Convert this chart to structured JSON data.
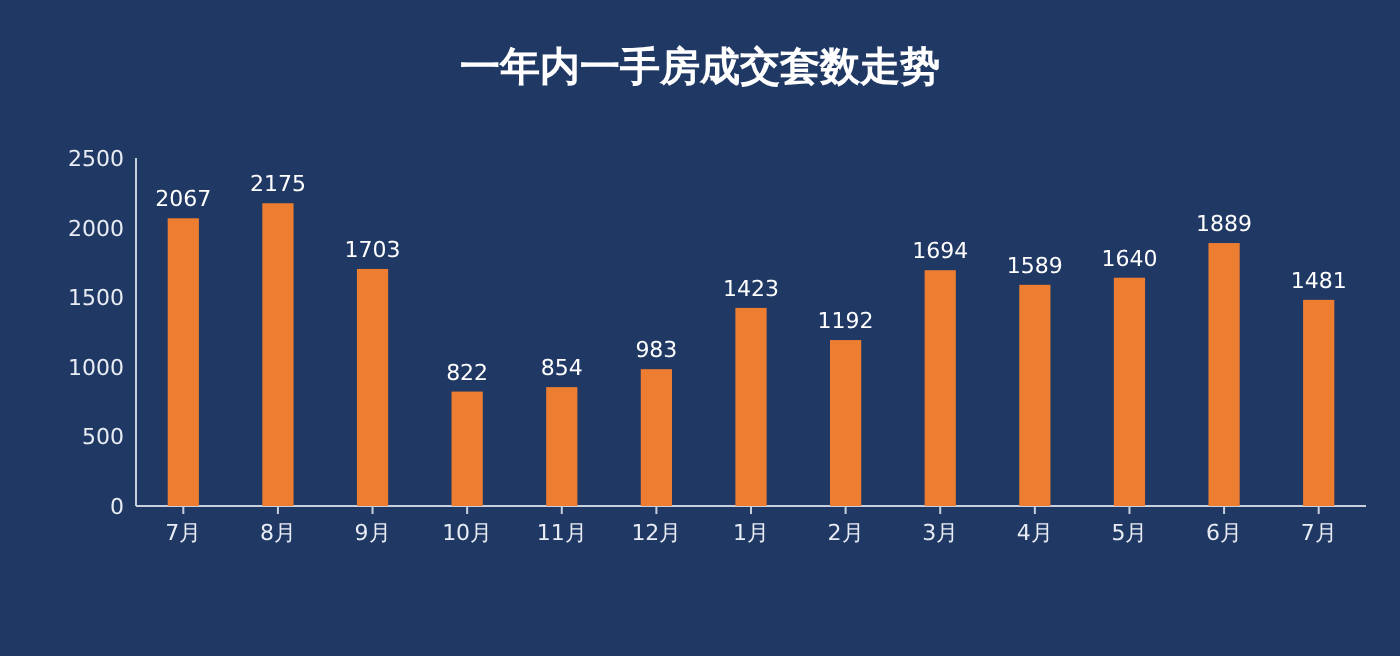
{
  "chart_data": {
    "type": "bar",
    "title": "一年内一手房成交套数走势",
    "categories": [
      "7月",
      "8月",
      "9月",
      "10月",
      "11月",
      "12月",
      "1月",
      "2月",
      "3月",
      "4月",
      "5月",
      "6月",
      "7月"
    ],
    "values": [
      2067,
      2175,
      1703,
      822,
      854,
      983,
      1423,
      1192,
      1694,
      1589,
      1640,
      1889,
      1481
    ],
    "color": "#ed7d31",
    "ylim": [
      0,
      2500
    ],
    "yticks": [
      0,
      500,
      1000,
      1500,
      2000,
      2500
    ],
    "data_labels": true
  }
}
